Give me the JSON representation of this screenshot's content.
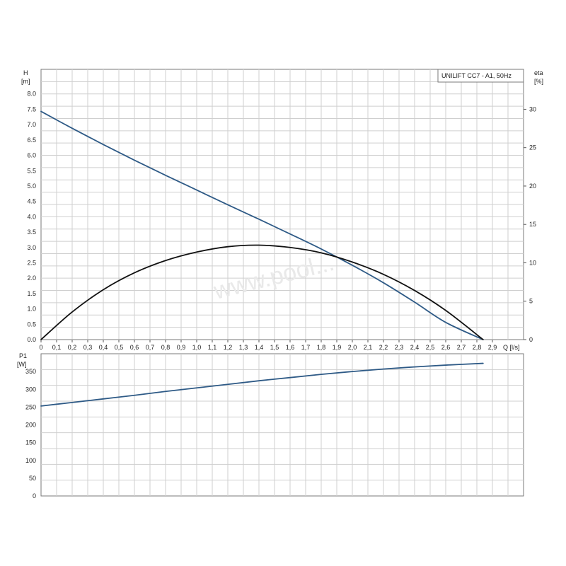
{
  "chart_data": [
    {
      "type": "line",
      "panel": "head-efficiency",
      "title": "UNILIFT CC7 - A1, 50Hz",
      "xlabel": "Q [l/s]",
      "ylabel_line1": "H",
      "ylabel_line2": "[m]",
      "y2label_line1": "eta",
      "y2label_line2": "[%]",
      "xlim": [
        0,
        3.1
      ],
      "ylim": [
        0,
        8.8
      ],
      "y2lim": [
        0,
        35.2
      ],
      "grid": true,
      "legend_position": "top-right",
      "x_ticks": [
        "0",
        "0,1",
        "0,2",
        "0,3",
        "0,4",
        "0,5",
        "0,6",
        "0,7",
        "0,8",
        "0,9",
        "1,0",
        "1,1",
        "1,2",
        "1,3",
        "1,4",
        "1,5",
        "1,6",
        "1,7",
        "1,8",
        "1,9",
        "2,0",
        "2,1",
        "2,2",
        "2,3",
        "2,4",
        "2,5",
        "2,6",
        "2,7",
        "2,8",
        "2,9"
      ],
      "y_ticks": [
        "0.0",
        "0.5",
        "1.0",
        "1.5",
        "2.0",
        "2.5",
        "3.0",
        "3.5",
        "4.0",
        "4.5",
        "5.0",
        "5.5",
        "6.0",
        "6.5",
        "7.0",
        "7.5",
        "8.0"
      ],
      "y2_ticks": [
        "0",
        "5",
        "10",
        "15",
        "20",
        "25",
        "30"
      ],
      "series": [
        {
          "key": "head",
          "axis": "left",
          "color": "#2e5a86",
          "x": [
            0,
            0.2,
            0.4,
            0.6,
            0.8,
            1.0,
            1.2,
            1.4,
            1.6,
            1.8,
            2.0,
            2.2,
            2.4,
            2.6,
            2.84
          ],
          "y": [
            7.43,
            6.88,
            6.35,
            5.84,
            5.35,
            4.87,
            4.39,
            3.92,
            3.44,
            2.95,
            2.42,
            1.85,
            1.22,
            0.56,
            0.0
          ]
        },
        {
          "key": "efficiency",
          "axis": "right",
          "color": "#111111",
          "x": [
            0,
            0.2,
            0.4,
            0.6,
            0.8,
            1.0,
            1.2,
            1.4,
            1.6,
            1.8,
            2.0,
            2.2,
            2.4,
            2.6,
            2.84
          ],
          "y": [
            0,
            3.6,
            6.5,
            8.7,
            10.3,
            11.4,
            12.1,
            12.3,
            12.0,
            11.3,
            10.1,
            8.5,
            6.4,
            3.8,
            0
          ]
        }
      ]
    },
    {
      "type": "line",
      "panel": "power",
      "xlabel": "",
      "ylabel_line1": "P1",
      "ylabel_line2": "[W]",
      "xlim": [
        0,
        3.1
      ],
      "ylim": [
        0,
        400
      ],
      "grid": true,
      "y_ticks": [
        "0",
        "50",
        "100",
        "150",
        "200",
        "250",
        "300",
        "350"
      ],
      "series": [
        {
          "key": "power",
          "axis": "left",
          "color": "#2e5a86",
          "x": [
            0,
            0.2,
            0.4,
            0.6,
            0.8,
            1.0,
            1.2,
            1.4,
            1.6,
            1.8,
            2.0,
            2.2,
            2.4,
            2.6,
            2.84
          ],
          "y": [
            253,
            263,
            273,
            283,
            294,
            304,
            314,
            324,
            333,
            342,
            350,
            357,
            363,
            368,
            373
          ]
        }
      ]
    }
  ],
  "watermark_text": "www.pool..."
}
